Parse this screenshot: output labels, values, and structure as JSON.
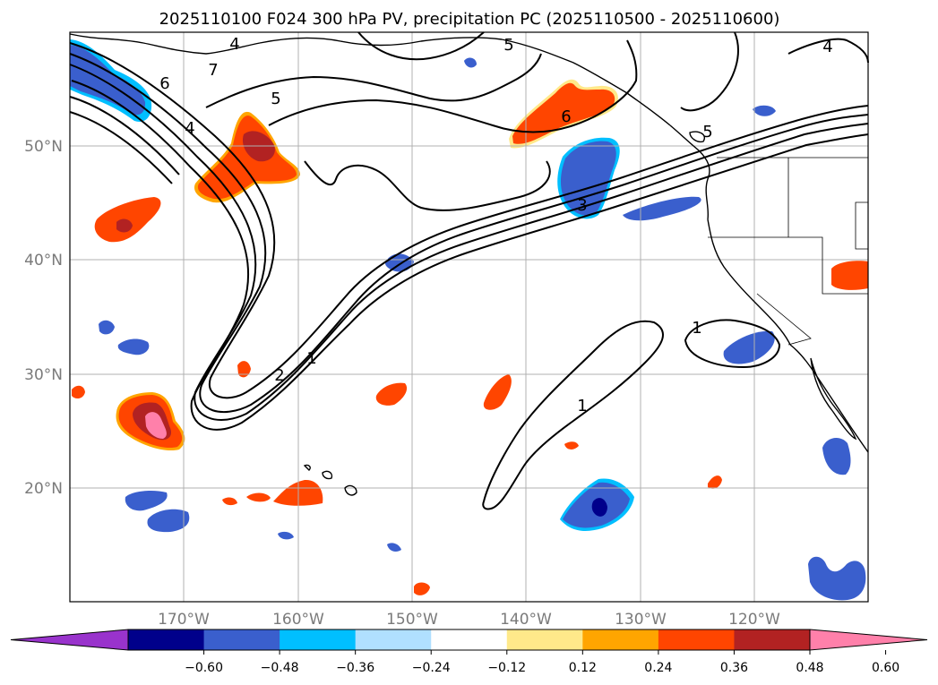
{
  "title": "2025110100 F024 300 hPa PV, precipitation PC (2025110500 - 2025110600)",
  "lon_labels": [
    "170°W",
    "160°W",
    "150°W",
    "140°W",
    "130°W",
    "120°W"
  ],
  "lat_labels": [
    "50°N",
    "40°N",
    "30°N",
    "20°N"
  ],
  "colorbar": {
    "ticks": [
      "−0.60",
      "−0.48",
      "−0.36",
      "−0.24",
      "−0.12",
      "0.12",
      "0.24",
      "0.36",
      "0.48",
      "0.60"
    ],
    "colors": [
      "#9933cc",
      "#00008b",
      "#3a5fcd",
      "#00bfff",
      "#b0e0ff",
      "#ffffff",
      "#ffe98a",
      "#ffa500",
      "#ff4500",
      "#b22222",
      "#ff80aa"
    ]
  },
  "contour_labels": {
    "c1": "1",
    "c2": "1",
    "c3": "1",
    "c4": "2",
    "c5": "3",
    "c6": "4",
    "c7": "4",
    "c8": "4",
    "c9": "5",
    "c10": "5",
    "c11": "5",
    "c12": "6",
    "c13": "6",
    "c14": "7"
  },
  "map": {
    "field": "precipitation PC",
    "contour_field": "300 hPa PV",
    "lon_range": [
      -180,
      -110
    ],
    "lat_range": [
      10,
      60
    ]
  }
}
